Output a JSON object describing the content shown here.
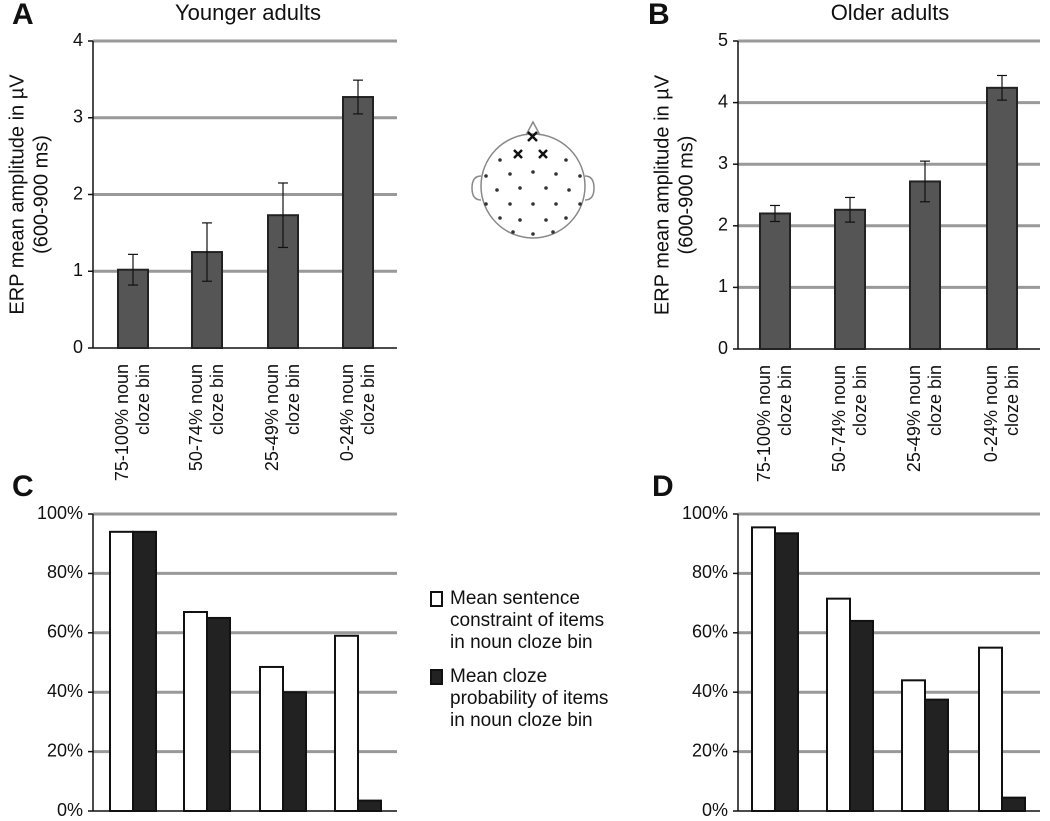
{
  "chart_data": [
    {
      "type": "bar",
      "letter": "A",
      "title": "Younger adults",
      "ylabel": [
        "ERP mean amplitude in µV",
        "(600-900 ms)"
      ],
      "categories": [
        [
          "75-100% noun",
          "cloze bin"
        ],
        [
          "50-74% noun",
          "cloze bin"
        ],
        [
          "25-49% noun",
          "cloze bin"
        ],
        [
          "0-24% noun",
          "cloze bin"
        ]
      ],
      "values": [
        1.02,
        1.25,
        1.73,
        3.27
      ],
      "errors": [
        0.2,
        0.38,
        0.42,
        0.22
      ],
      "color": "#555555",
      "ylim": [
        0,
        4
      ],
      "yticks": [
        0,
        1,
        2,
        3,
        4
      ],
      "grid": true
    },
    {
      "type": "bar",
      "letter": "B",
      "title": "Older adults",
      "ylabel": [
        "ERP mean amplitude in µV",
        "(600-900 ms)"
      ],
      "categories": [
        [
          "75-100% noun",
          "cloze bin"
        ],
        [
          "50-74% noun",
          "cloze bin"
        ],
        [
          "25-49% noun",
          "cloze bin"
        ],
        [
          "0-24% noun",
          "cloze bin"
        ]
      ],
      "values": [
        2.2,
        2.26,
        2.72,
        4.24
      ],
      "errors": [
        0.13,
        0.2,
        0.33,
        0.2
      ],
      "color": "#555555",
      "ylim": [
        0,
        5
      ],
      "yticks": [
        0,
        1,
        2,
        3,
        4,
        5
      ],
      "grid": true
    },
    {
      "type": "grouped_bar",
      "letter": "C",
      "series": [
        {
          "name": [
            "Mean sentence",
            "constraint of items",
            "in noun cloze bin"
          ],
          "color": "#ffffff",
          "values": [
            94,
            67,
            48.5,
            59
          ]
        },
        {
          "name": [
            "Mean cloze",
            "probability of items",
            "in noun cloze bin"
          ],
          "color": "#222222",
          "values": [
            94,
            65,
            40,
            3.5
          ]
        }
      ],
      "ylim": [
        0,
        100
      ],
      "yticks": [
        {
          "value": 0,
          "label": "0%"
        },
        {
          "value": 20,
          "label": "20%"
        },
        {
          "value": 40,
          "label": "40%"
        },
        {
          "value": 60,
          "label": "60%"
        },
        {
          "value": 80,
          "label": "80%"
        },
        {
          "value": 100,
          "label": "100%"
        }
      ],
      "grid": true
    },
    {
      "type": "grouped_bar",
      "letter": "D",
      "series": [
        {
          "color": "#ffffff",
          "values": [
            95.5,
            71.5,
            44,
            55
          ]
        },
        {
          "color": "#222222",
          "values": [
            93.5,
            64,
            37.5,
            4.5
          ]
        }
      ],
      "ylim": [
        0,
        100
      ],
      "yticks": [
        {
          "value": 0,
          "label": "0%"
        },
        {
          "value": 20,
          "label": "20%"
        },
        {
          "value": 40,
          "label": "40%"
        },
        {
          "value": 60,
          "label": "60%"
        },
        {
          "value": 80,
          "label": "80%"
        },
        {
          "value": 100,
          "label": "100%"
        }
      ],
      "grid": true
    }
  ]
}
